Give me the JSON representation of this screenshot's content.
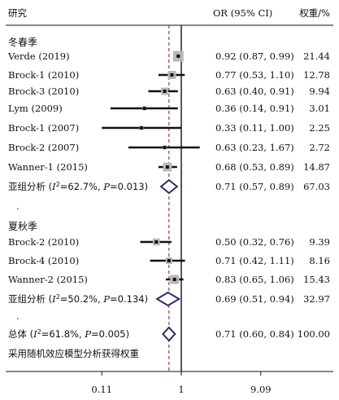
{
  "chart_data": {
    "type": "forest",
    "header": {
      "study": "研究",
      "effect": "OR (95% CI)",
      "weight": "权重/%"
    },
    "x_axis": {
      "scale": "log",
      "ticks": [
        "0.11",
        "1",
        "9.09"
      ],
      "tick_values": [
        0.11,
        1,
        9.09
      ],
      "xlim": [
        0.05,
        20
      ],
      "reference": 1,
      "dashed_line_at": 0.71
    },
    "groups": [
      {
        "name": "冬春季",
        "studies": [
          {
            "label": "Verde (2019)",
            "or": 0.92,
            "lo": 0.87,
            "hi": 0.99,
            "ci": "0.92 (0.87, 0.99)",
            "weight": "21.44"
          },
          {
            "label": "Brock-1 (2010)",
            "or": 0.77,
            "lo": 0.53,
            "hi": 1.1,
            "ci": "0.77 (0.53, 1.10)",
            "weight": "12.78"
          },
          {
            "label": "Brock-3 (2010)",
            "or": 0.63,
            "lo": 0.4,
            "hi": 0.91,
            "ci": "0.63 (0.40, 0.91)",
            "weight": "9.94"
          },
          {
            "label": "Lym (2009)",
            "or": 0.36,
            "lo": 0.14,
            "hi": 0.91,
            "ci": "0.36 (0.14, 0.91)",
            "weight": "3.01"
          },
          {
            "label": "Brock-1 (2007)",
            "or": 0.33,
            "lo": 0.11,
            "hi": 1.0,
            "ci": "0.33 (0.11, 1.00)",
            "weight": "2.25"
          },
          {
            "label": "Brock-2 (2007)",
            "or": 0.63,
            "lo": 0.23,
            "hi": 1.67,
            "ci": "0.63 (0.23, 1.67)",
            "weight": "2.72"
          },
          {
            "label": "Wanner-1 (2015)",
            "or": 0.68,
            "lo": 0.53,
            "hi": 0.89,
            "ci": "0.68 (0.53, 0.89)",
            "weight": "14.87"
          }
        ],
        "subtotal": {
          "label_prefix": "亚组分析 (",
          "i2": "I",
          "i2_sup": "2",
          "stats": "=62.7%, ",
          "p": "P",
          "p_value": "=0.013)",
          "or": 0.71,
          "lo": 0.57,
          "hi": 0.89,
          "ci": "0.71 (0.57, 0.89)",
          "weight": "67.03"
        }
      },
      {
        "name": "夏秋季",
        "studies": [
          {
            "label": "Brock-2 (2010)",
            "or": 0.5,
            "lo": 0.32,
            "hi": 0.76,
            "ci": "0.50 (0.32, 0.76)",
            "weight": "9.39"
          },
          {
            "label": "Brock-4 (2010)",
            "or": 0.71,
            "lo": 0.42,
            "hi": 1.11,
            "ci": "0.71 (0.42, 1.11)",
            "weight": "8.16"
          },
          {
            "label": "Wanner-2 (2015)",
            "or": 0.83,
            "lo": 0.65,
            "hi": 1.06,
            "ci": "0.83 (0.65, 1.06)",
            "weight": "15.43"
          }
        ],
        "subtotal": {
          "label_prefix": "亚组分析 (",
          "i2": "I",
          "i2_sup": "2",
          "stats": "=50.2%, ",
          "p": "P",
          "p_value": "=0.134)",
          "or": 0.69,
          "lo": 0.51,
          "hi": 0.94,
          "ci": "0.69 (0.51, 0.94)",
          "weight": "32.97"
        }
      }
    ],
    "overall": {
      "label_prefix": "总体 (",
      "i2": "I",
      "i2_sup": "2",
      "stats": "=61.8%, ",
      "p": "P",
      "p_value": "=0.005)",
      "or": 0.71,
      "lo": 0.6,
      "hi": 0.84,
      "ci": "0.71 (0.60, 0.84)",
      "weight": "100.00"
    },
    "footnote": "采用随机效应模型分析获得权重",
    "separator": "."
  }
}
